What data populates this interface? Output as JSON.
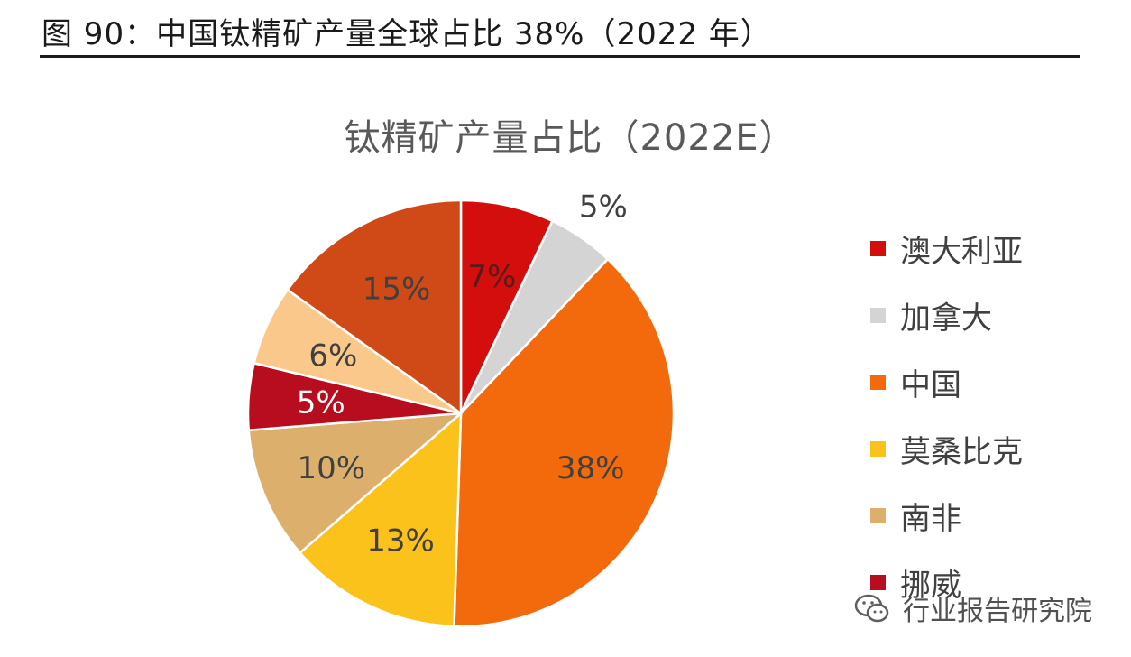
{
  "figure_title": "图 90：中国钛精矿产量全球占比 38%（2022 年）",
  "watermark": "行业报告研究院",
  "chart_data": {
    "type": "pie",
    "title": "钛精矿产量占比（2022E）",
    "legend_position": "right",
    "slices": [
      {
        "label": "澳大利亚",
        "value": 7,
        "display": "7%",
        "color": "#d40d0d"
      },
      {
        "label": "加拿大",
        "value": 5,
        "display": "5%",
        "color": "#d4d4d4"
      },
      {
        "label": "中国",
        "value": 38,
        "display": "38%",
        "color": "#f26a0c"
      },
      {
        "label": "莫桑比克",
        "value": 13,
        "display": "13%",
        "color": "#fcc21c"
      },
      {
        "label": "南非",
        "value": 10,
        "display": "10%",
        "color": "#dcb06c"
      },
      {
        "label": "挪威",
        "value": 5,
        "display": "5%",
        "color": "#b80d1e"
      },
      {
        "label": "",
        "value": 6,
        "display": "6%",
        "color": "#fbc88c"
      },
      {
        "label": "",
        "value": 15,
        "display": "15%",
        "color": "#cf4a16"
      }
    ]
  }
}
